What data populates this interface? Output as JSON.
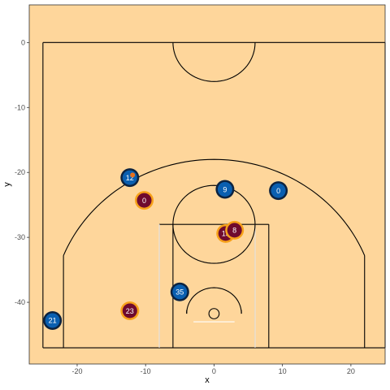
{
  "chart_data": {
    "type": "scatter",
    "title": "",
    "xlabel": "x",
    "ylabel": "y",
    "xlim": [
      -27,
      25
    ],
    "ylim": [
      -49.5,
      5.8
    ],
    "x_ticks": [
      -20,
      -10,
      0,
      10,
      20
    ],
    "y_ticks": [
      0,
      -10,
      -20,
      -30,
      -40
    ],
    "grid": false,
    "colors": {
      "panel": "#FED69B",
      "court_lines": "#000000",
      "white_lines": "#ffffff",
      "team_a_fill": "#0A5FB0",
      "team_a_ring": "#0C2340",
      "team_b_fill": "#6F0A2E",
      "team_b_ring": "#F7A11A",
      "ball": "#E8711C"
    },
    "series": [
      {
        "team": "a",
        "points": [
          {
            "x": -12.3,
            "y": -20.8,
            "label": "12"
          },
          {
            "x": 1.6,
            "y": -22.6,
            "label": "9"
          },
          {
            "x": 9.4,
            "y": -22.8,
            "label": "0"
          },
          {
            "x": -5,
            "y": -38.4,
            "label": "35"
          },
          {
            "x": -23.6,
            "y": -42.8,
            "label": "21"
          }
        ]
      },
      {
        "team": "b",
        "points": [
          {
            "x": -10.2,
            "y": -24.3,
            "label": "0"
          },
          {
            "x": 1.7,
            "y": -29.4,
            "label": "13"
          },
          {
            "x": 3,
            "y": -28.9,
            "label": "8"
          },
          {
            "x": -12.3,
            "y": -41.3,
            "label": "23"
          }
        ]
      }
    ],
    "ball": {
      "x": -11.9,
      "y": -20.4
    }
  }
}
